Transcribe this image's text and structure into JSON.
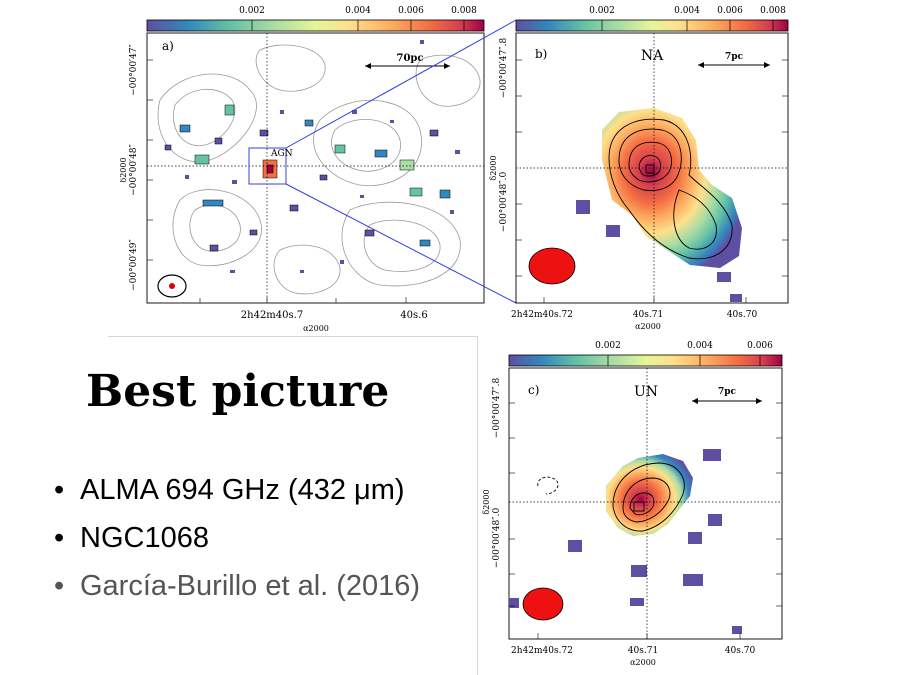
{
  "colorbar_ticks": {
    "a": [
      "0.002",
      "0.004",
      "0.006",
      "0.008"
    ],
    "b": [
      "0.002",
      "0.004",
      "0.006",
      "0.008"
    ],
    "c": [
      "0.002",
      "0.004",
      "0.006"
    ]
  },
  "panel_a": {
    "label": "a)",
    "scale": "70pc",
    "source": "AGN",
    "y_ticks": [
      "−00°00′47″",
      "−00°00′48″",
      "−00°00′49″"
    ],
    "y_axis": "δ2000",
    "x_ticks": [
      "2h42m40s.7",
      "40s.6"
    ],
    "x_axis": "α2000"
  },
  "panel_b": {
    "label": "b)",
    "region": "NA",
    "scale": "7pc",
    "y_ticks": [
      "−00°00′47″.8",
      "−00°00′48″.0"
    ],
    "y_axis": "δ2000",
    "x_ticks": [
      "2h42m40s.72",
      "40s.71",
      "40s.70"
    ],
    "x_axis": "α2000"
  },
  "panel_c": {
    "label": "c)",
    "region": "UN",
    "scale": "7pc",
    "y_ticks": [
      "−00°00′47″.8",
      "−00°00′48″.0"
    ],
    "y_axis": "δ2000",
    "x_ticks": [
      "2h42m40s.72",
      "40s.71",
      "40s.70"
    ],
    "x_axis": "α2000"
  },
  "slide": {
    "title": "Best picture",
    "bullets": [
      "ALMA 694 GHz (432 μm)",
      "NGC1068",
      "García-Burillo et al. (2016)"
    ],
    "bullet_colors": [
      "#000000",
      "#000000",
      "#555555"
    ]
  },
  "colormap": [
    "#5e4fa2",
    "#3288bd",
    "#66c2a5",
    "#abdda4",
    "#e6f598",
    "#fee08b",
    "#fdae61",
    "#f46d43",
    "#d53e4f",
    "#9e0142"
  ]
}
